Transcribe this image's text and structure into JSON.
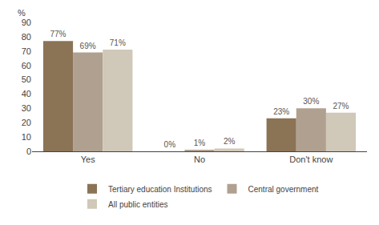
{
  "chart_data": {
    "type": "bar",
    "categories": [
      "Yes",
      "No",
      "Don't know"
    ],
    "series": [
      {
        "name": "Tertiary education Institutions",
        "color": "#8B7355",
        "values": [
          77,
          0,
          23
        ],
        "value_labels": [
          "77%",
          "0%",
          "23%"
        ]
      },
      {
        "name": "Central government",
        "color": "#B0A090",
        "values": [
          69,
          1,
          30
        ],
        "value_labels": [
          "69%",
          "1%",
          "30%"
        ]
      },
      {
        "name": "All public entities",
        "color": "#D0C8B8",
        "values": [
          71,
          2,
          27
        ],
        "value_labels": [
          "71%",
          "2%",
          "27%"
        ]
      }
    ],
    "ylabel": "%",
    "ylim": [
      0,
      90
    ],
    "yticks": [
      0,
      10,
      20,
      30,
      40,
      50,
      60,
      70,
      80,
      90
    ],
    "grid": false,
    "data_labels": true,
    "legend": "bottom"
  }
}
